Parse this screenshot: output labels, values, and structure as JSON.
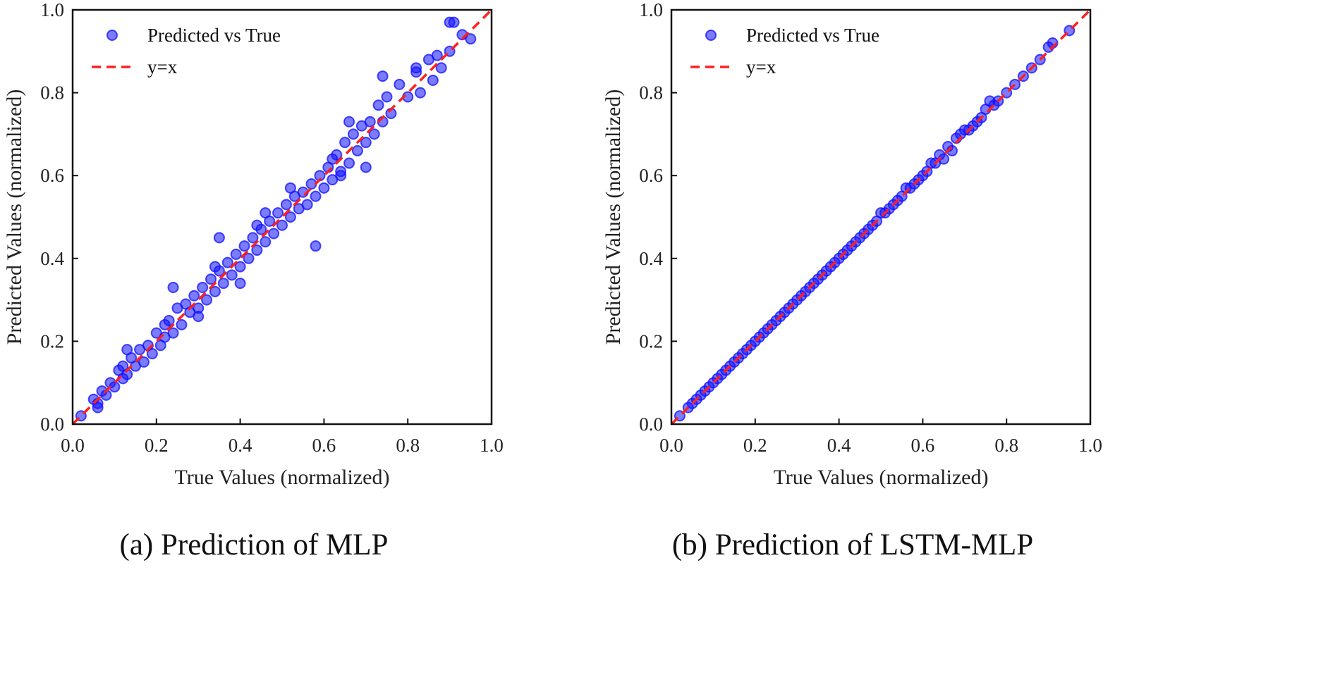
{
  "chart_data": [
    {
      "type": "scatter",
      "caption": "(a)  Prediction of MLP",
      "xlabel": "True Values (normalized)",
      "ylabel": "Predicted Values (normalized)",
      "xlim": [
        0.0,
        1.0
      ],
      "ylim": [
        0.0,
        1.0
      ],
      "xticks": [
        "0.0",
        "0.2",
        "0.4",
        "0.6",
        "0.8",
        "1.0"
      ],
      "yticks": [
        "0.0",
        "0.2",
        "0.4",
        "0.6",
        "0.8",
        "1.0"
      ],
      "grid": false,
      "legend_position": "top-left",
      "series": [
        {
          "name": "Predicted vs True",
          "kind": "scatter",
          "color": "#1010ff",
          "x": [
            0.02,
            0.05,
            0.06,
            0.07,
            0.08,
            0.09,
            0.1,
            0.11,
            0.12,
            0.12,
            0.13,
            0.14,
            0.15,
            0.16,
            0.17,
            0.18,
            0.19,
            0.2,
            0.21,
            0.22,
            0.22,
            0.23,
            0.24,
            0.25,
            0.26,
            0.27,
            0.28,
            0.29,
            0.3,
            0.31,
            0.32,
            0.33,
            0.34,
            0.35,
            0.36,
            0.37,
            0.38,
            0.39,
            0.4,
            0.41,
            0.42,
            0.43,
            0.44,
            0.45,
            0.46,
            0.47,
            0.48,
            0.49,
            0.5,
            0.51,
            0.52,
            0.53,
            0.54,
            0.55,
            0.56,
            0.57,
            0.58,
            0.59,
            0.6,
            0.61,
            0.62,
            0.63,
            0.64,
            0.65,
            0.66,
            0.67,
            0.68,
            0.69,
            0.7,
            0.71,
            0.72,
            0.73,
            0.74,
            0.75,
            0.76,
            0.78,
            0.8,
            0.82,
            0.83,
            0.85,
            0.86,
            0.87,
            0.88,
            0.9,
            0.91,
            0.93,
            0.95,
            0.35,
            0.58,
            0.24,
            0.3,
            0.4,
            0.46,
            0.64,
            0.66,
            0.7,
            0.74,
            0.82,
            0.13,
            0.52,
            0.9,
            0.06,
            0.34,
            0.44,
            0.62
          ],
          "y": [
            0.02,
            0.06,
            0.05,
            0.08,
            0.07,
            0.1,
            0.09,
            0.13,
            0.11,
            0.14,
            0.12,
            0.16,
            0.14,
            0.18,
            0.15,
            0.19,
            0.17,
            0.22,
            0.19,
            0.24,
            0.21,
            0.25,
            0.22,
            0.28,
            0.24,
            0.29,
            0.27,
            0.31,
            0.28,
            0.33,
            0.3,
            0.35,
            0.32,
            0.37,
            0.34,
            0.39,
            0.36,
            0.41,
            0.38,
            0.43,
            0.4,
            0.45,
            0.42,
            0.47,
            0.44,
            0.49,
            0.46,
            0.51,
            0.48,
            0.53,
            0.5,
            0.55,
            0.52,
            0.56,
            0.53,
            0.58,
            0.55,
            0.6,
            0.57,
            0.62,
            0.59,
            0.65,
            0.61,
            0.68,
            0.63,
            0.7,
            0.66,
            0.72,
            0.68,
            0.73,
            0.7,
            0.77,
            0.73,
            0.79,
            0.75,
            0.82,
            0.79,
            0.86,
            0.8,
            0.88,
            0.83,
            0.89,
            0.86,
            0.9,
            0.97,
            0.94,
            0.93,
            0.45,
            0.43,
            0.33,
            0.26,
            0.34,
            0.51,
            0.6,
            0.73,
            0.62,
            0.84,
            0.85,
            0.18,
            0.57,
            0.97,
            0.04,
            0.38,
            0.48,
            0.64
          ]
        },
        {
          "name": "y=x",
          "kind": "line",
          "color": "#ff2020",
          "x": [
            0.0,
            1.0
          ],
          "y": [
            0.0,
            1.0
          ]
        }
      ]
    },
    {
      "type": "scatter",
      "caption": "(b)  Prediction of LSTM-MLP",
      "xlabel": "True Values (normalized)",
      "ylabel": "Predicted Values (normalized)",
      "xlim": [
        0.0,
        1.0
      ],
      "ylim": [
        0.0,
        1.0
      ],
      "xticks": [
        "0.0",
        "0.2",
        "0.4",
        "0.6",
        "0.8",
        "1.0"
      ],
      "yticks": [
        "0.0",
        "0.2",
        "0.4",
        "0.6",
        "0.8",
        "1.0"
      ],
      "grid": false,
      "legend_position": "top-left",
      "series": [
        {
          "name": "Predicted vs True",
          "kind": "scatter",
          "color": "#1010ff",
          "x": [
            0.02,
            0.04,
            0.05,
            0.06,
            0.07,
            0.08,
            0.09,
            0.1,
            0.11,
            0.12,
            0.13,
            0.14,
            0.15,
            0.16,
            0.17,
            0.18,
            0.19,
            0.2,
            0.21,
            0.22,
            0.23,
            0.24,
            0.25,
            0.26,
            0.27,
            0.28,
            0.29,
            0.3,
            0.31,
            0.32,
            0.33,
            0.34,
            0.35,
            0.36,
            0.37,
            0.38,
            0.39,
            0.4,
            0.41,
            0.42,
            0.43,
            0.44,
            0.45,
            0.46,
            0.47,
            0.48,
            0.49,
            0.5,
            0.51,
            0.52,
            0.53,
            0.54,
            0.55,
            0.56,
            0.57,
            0.58,
            0.59,
            0.6,
            0.61,
            0.62,
            0.63,
            0.64,
            0.65,
            0.66,
            0.67,
            0.68,
            0.69,
            0.7,
            0.71,
            0.72,
            0.73,
            0.74,
            0.75,
            0.76,
            0.77,
            0.78,
            0.8,
            0.82,
            0.84,
            0.86,
            0.88,
            0.9,
            0.91,
            0.95
          ],
          "y": [
            0.02,
            0.04,
            0.05,
            0.06,
            0.07,
            0.08,
            0.09,
            0.1,
            0.11,
            0.12,
            0.13,
            0.14,
            0.15,
            0.16,
            0.17,
            0.18,
            0.19,
            0.2,
            0.21,
            0.22,
            0.23,
            0.24,
            0.25,
            0.26,
            0.27,
            0.28,
            0.29,
            0.3,
            0.31,
            0.32,
            0.33,
            0.34,
            0.35,
            0.36,
            0.37,
            0.38,
            0.39,
            0.4,
            0.41,
            0.42,
            0.43,
            0.44,
            0.45,
            0.46,
            0.47,
            0.48,
            0.49,
            0.51,
            0.51,
            0.52,
            0.53,
            0.54,
            0.55,
            0.57,
            0.57,
            0.58,
            0.59,
            0.6,
            0.61,
            0.63,
            0.63,
            0.65,
            0.64,
            0.67,
            0.66,
            0.69,
            0.7,
            0.71,
            0.71,
            0.72,
            0.73,
            0.74,
            0.76,
            0.78,
            0.77,
            0.78,
            0.8,
            0.82,
            0.84,
            0.86,
            0.88,
            0.91,
            0.92,
            0.95
          ]
        },
        {
          "name": "y=x",
          "kind": "line",
          "color": "#ff2020",
          "x": [
            0.0,
            1.0
          ],
          "y": [
            0.0,
            1.0
          ]
        }
      ]
    }
  ]
}
